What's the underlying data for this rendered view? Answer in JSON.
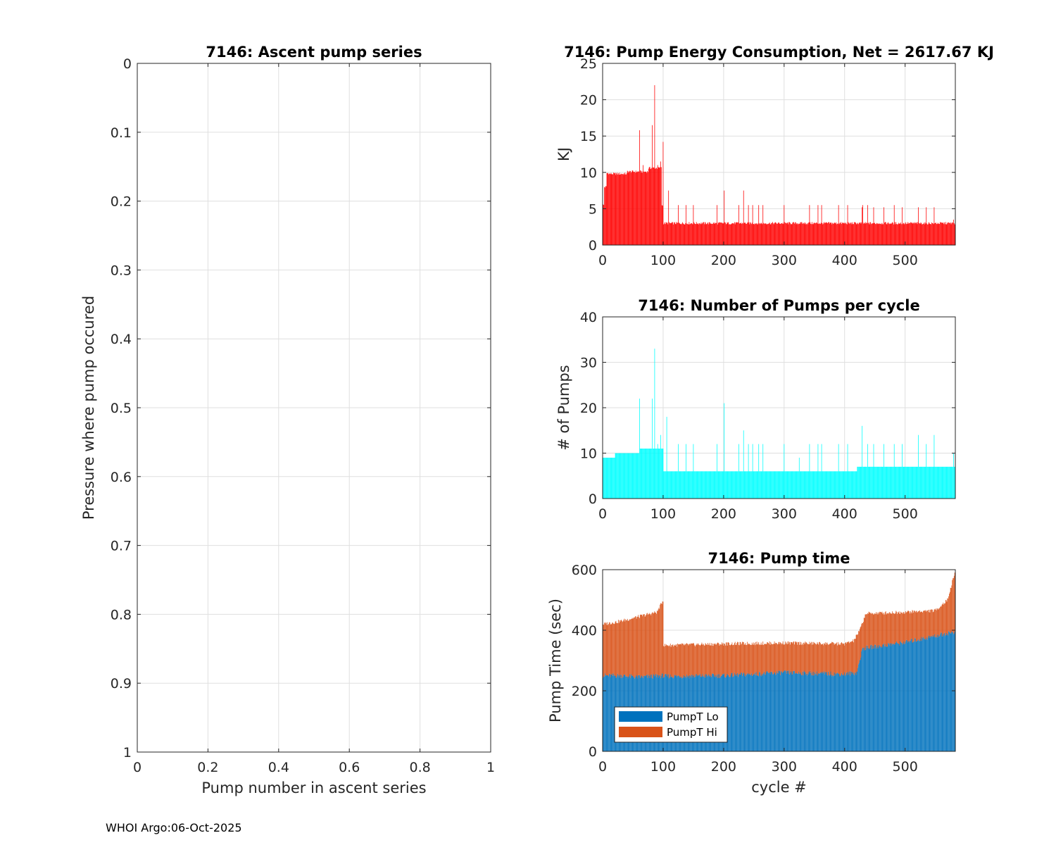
{
  "footer": "WHOI Argo:06-Oct-2025",
  "colors": {
    "energy": "#ff0000",
    "pumps": "#00ffff",
    "lo": "#0072bd",
    "hi": "#d95319",
    "grid": "#dfdfdf",
    "axis": "#262626"
  },
  "chart_data": [
    {
      "id": "ascent",
      "type": "scatter",
      "title": "7146: Ascent pump series",
      "xlabel": "Pump number in ascent series",
      "ylabel": "Pressure where pump occured",
      "xlim": [
        0,
        1
      ],
      "ylim": [
        0,
        1
      ],
      "y_reversed": true,
      "xticks": [
        0,
        0.2,
        0.4,
        0.6,
        0.8,
        1
      ],
      "xtick_labels": [
        "0",
        "0.2",
        "0.4",
        "0.6",
        "0.8",
        "1"
      ],
      "yticks": [
        0,
        0.1,
        0.2,
        0.3,
        0.4,
        0.5,
        0.6,
        0.7,
        0.8,
        0.9,
        1
      ],
      "ytick_labels": [
        "0",
        "0.1",
        "0.2",
        "0.3",
        "0.4",
        "0.5",
        "0.6",
        "0.7",
        "0.8",
        "0.9",
        "1"
      ],
      "grid": true,
      "series": []
    },
    {
      "id": "energy",
      "type": "bar",
      "title": "7146: Pump Energy Consumption,  Net = 2617.67 KJ",
      "xlabel": "",
      "ylabel": "KJ",
      "xlim": [
        0,
        583
      ],
      "ylim": [
        0,
        25
      ],
      "xticks": [
        0,
        100,
        200,
        300,
        400,
        500
      ],
      "xtick_labels": [
        "0",
        "100",
        "200",
        "300",
        "400",
        "500"
      ],
      "yticks": [
        0,
        5,
        10,
        15,
        20,
        25
      ],
      "ytick_labels": [
        "0",
        "5",
        "10",
        "15",
        "20",
        "25"
      ],
      "grid": true,
      "x_range": [
        1,
        582
      ],
      "baseline_segments": [
        [
          1,
          2,
          5.5
        ],
        [
          3,
          6,
          8
        ],
        [
          7,
          10,
          9.9
        ],
        [
          11,
          40,
          9.8
        ],
        [
          41,
          75,
          10.1
        ],
        [
          76,
          97,
          10.6
        ],
        [
          98,
          100,
          5.5
        ],
        [
          101,
          582,
          3.0
        ]
      ],
      "spikes": [
        [
          61,
          15.8
        ],
        [
          67,
          11
        ],
        [
          82,
          16.5
        ],
        [
          86,
          22
        ],
        [
          91,
          11
        ],
        [
          96,
          11.5
        ],
        [
          100,
          14.2
        ],
        [
          109,
          7.5
        ],
        [
          125,
          5.5
        ],
        [
          138,
          5.5
        ],
        [
          150,
          5.5
        ],
        [
          189,
          5.5
        ],
        [
          201,
          7.5
        ],
        [
          225,
          5.5
        ],
        [
          233,
          7.5
        ],
        [
          241,
          5.5
        ],
        [
          248,
          5.5
        ],
        [
          258,
          5.5
        ],
        [
          265,
          5.5
        ],
        [
          300,
          5.5
        ],
        [
          342,
          5.5
        ],
        [
          356,
          5.5
        ],
        [
          362,
          5.5
        ],
        [
          390,
          5.5
        ],
        [
          405,
          5.5
        ],
        [
          429,
          5.2
        ],
        [
          430,
          5.5
        ],
        [
          438,
          5.5
        ],
        [
          448,
          5.2
        ],
        [
          465,
          5.2
        ],
        [
          482,
          5.5
        ],
        [
          495,
          5.2
        ],
        [
          522,
          5.2
        ],
        [
          535,
          5.2
        ],
        [
          548,
          5.2
        ],
        [
          580,
          3.5
        ]
      ]
    },
    {
      "id": "pumps",
      "type": "bar",
      "title": "7146: Number of Pumps per cycle",
      "xlabel": "",
      "ylabel": "# of Pumps",
      "xlim": [
        0,
        583
      ],
      "ylim": [
        0,
        40
      ],
      "xticks": [
        0,
        100,
        200,
        300,
        400,
        500
      ],
      "xtick_labels": [
        "0",
        "100",
        "200",
        "300",
        "400",
        "500"
      ],
      "yticks": [
        0,
        10,
        20,
        30,
        40
      ],
      "ytick_labels": [
        "0",
        "10",
        "20",
        "30",
        "40"
      ],
      "grid": true,
      "x_range": [
        1,
        582
      ],
      "baseline_segments": [
        [
          1,
          20,
          9
        ],
        [
          21,
          60,
          10
        ],
        [
          61,
          100,
          11
        ],
        [
          101,
          420,
          6
        ],
        [
          421,
          430,
          7
        ],
        [
          431,
          582,
          7
        ]
      ],
      "spikes": [
        [
          61,
          22
        ],
        [
          66,
          11
        ],
        [
          82,
          22
        ],
        [
          86,
          33
        ],
        [
          91,
          12
        ],
        [
          96,
          14
        ],
        [
          106,
          18
        ],
        [
          125,
          12
        ],
        [
          138,
          12
        ],
        [
          150,
          12
        ],
        [
          189,
          12
        ],
        [
          201,
          21
        ],
        [
          225,
          12
        ],
        [
          233,
          15
        ],
        [
          241,
          12
        ],
        [
          248,
          12
        ],
        [
          258,
          12
        ],
        [
          265,
          12
        ],
        [
          300,
          12
        ],
        [
          325,
          9
        ],
        [
          342,
          12
        ],
        [
          356,
          12
        ],
        [
          362,
          12
        ],
        [
          390,
          12
        ],
        [
          405,
          12
        ],
        [
          429,
          16
        ],
        [
          438,
          12
        ],
        [
          448,
          12
        ],
        [
          465,
          12
        ],
        [
          482,
          12
        ],
        [
          495,
          12
        ],
        [
          522,
          14
        ],
        [
          535,
          12
        ],
        [
          548,
          14
        ],
        [
          580,
          10
        ]
      ]
    },
    {
      "id": "time",
      "type": "bar",
      "stacked": true,
      "title": "7146: Pump time",
      "xlabel": "cycle #",
      "ylabel": "Pump Time (sec)",
      "xlim": [
        0,
        583
      ],
      "ylim": [
        0,
        600
      ],
      "xticks": [
        0,
        100,
        200,
        300,
        400,
        500
      ],
      "xtick_labels": [
        "0",
        "100",
        "200",
        "300",
        "400",
        "500"
      ],
      "yticks": [
        0,
        200,
        400,
        600
      ],
      "ytick_labels": [
        "0",
        "200",
        "400",
        "600"
      ],
      "grid": true,
      "legend": {
        "position": "bottom-left",
        "entries": [
          "PumpT Lo",
          "PumpT Hi"
        ]
      },
      "x_range": [
        1,
        582
      ],
      "series": [
        {
          "name": "PumpT Lo",
          "keypoints": [
            [
              1,
              250
            ],
            [
              30,
              250
            ],
            [
              60,
              245
            ],
            [
              100,
              250
            ],
            [
              101,
              248
            ],
            [
              200,
              250
            ],
            [
              300,
              260
            ],
            [
              400,
              255
            ],
            [
              420,
              260
            ],
            [
              430,
              340
            ],
            [
              500,
              360
            ],
            [
              582,
              395
            ]
          ]
        },
        {
          "name": "PumpT Hi",
          "keypoints": [
            [
              1,
              420
            ],
            [
              30,
              430
            ],
            [
              60,
              445
            ],
            [
              90,
              460
            ],
            [
              99,
              495
            ],
            [
              100,
              500
            ],
            [
              101,
              350
            ],
            [
              200,
              355
            ],
            [
              300,
              358
            ],
            [
              400,
              355
            ],
            [
              415,
              365
            ],
            [
              425,
              400
            ],
            [
              435,
              455
            ],
            [
              500,
              460
            ],
            [
              550,
              465
            ],
            [
              570,
              500
            ],
            [
              582,
              590
            ]
          ]
        }
      ]
    }
  ]
}
